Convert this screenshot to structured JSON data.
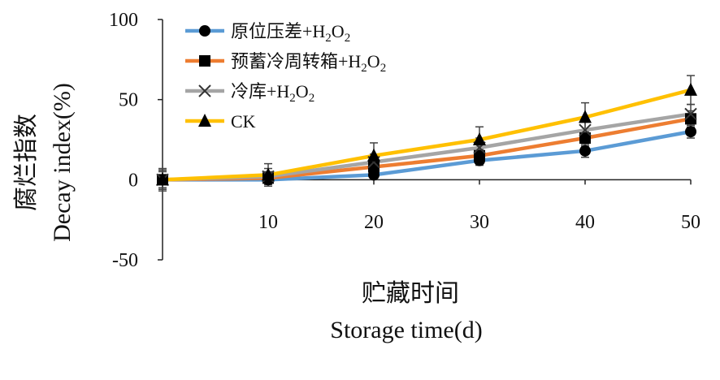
{
  "chart_data": {
    "type": "line",
    "title": "",
    "xlabel_cn": "贮藏时间",
    "xlabel": "Storage time(d)",
    "ylabel_cn": "腐烂指数",
    "ylabel": "Decay index(%)",
    "x": [
      0,
      10,
      20,
      30,
      40,
      50
    ],
    "xticks": [
      "10",
      "20",
      "30",
      "40",
      "50"
    ],
    "yticks": [
      "100",
      "50",
      "0",
      "-50"
    ],
    "ylim": [
      -50,
      100
    ],
    "xlim": [
      0,
      50
    ],
    "grid": false,
    "legend_position": "top-left",
    "series": [
      {
        "name_parts": [
          "原位压差+H",
          "2",
          "O",
          "2"
        ],
        "color": "#5B9BD5",
        "marker": "circle",
        "values": [
          0,
          0,
          3,
          12,
          18,
          30
        ],
        "errors": [
          5,
          3,
          3,
          3,
          4,
          4
        ]
      },
      {
        "name_parts": [
          "预蓄冷周转箱+H",
          "2",
          "O",
          "2"
        ],
        "color": "#ED7D31",
        "marker": "square",
        "values": [
          0,
          1,
          8,
          15,
          26,
          38
        ],
        "errors": [
          6,
          4,
          4,
          4,
          5,
          5
        ]
      },
      {
        "name_parts": [
          "冷库+H",
          "2",
          "O",
          "2"
        ],
        "color": "#A5A5A5",
        "marker": "x",
        "values": [
          0,
          2,
          11,
          20,
          31,
          41
        ],
        "errors": [
          6,
          5,
          5,
          6,
          6,
          6
        ]
      },
      {
        "name_parts": [
          "CK"
        ],
        "color": "#FFC000",
        "marker": "triangle",
        "values": [
          0,
          3,
          15,
          25,
          39,
          56
        ],
        "errors": [
          7,
          7,
          8,
          8,
          9,
          9
        ]
      }
    ]
  }
}
